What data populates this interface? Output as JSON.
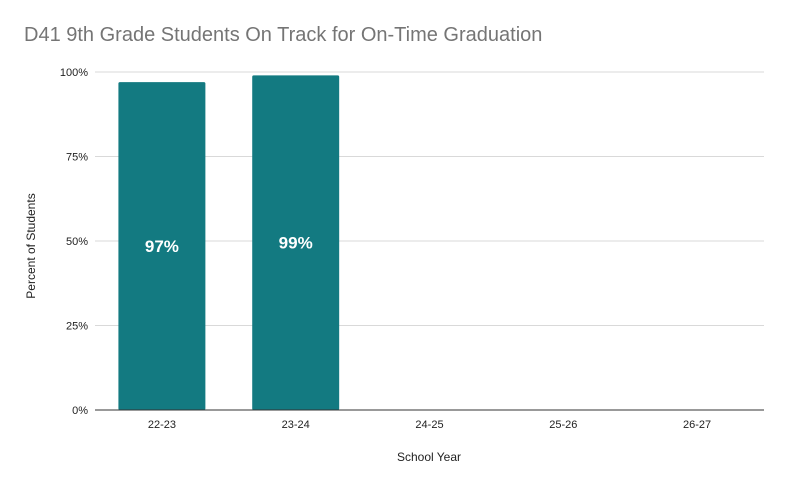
{
  "chart_data": {
    "type": "bar",
    "title": "D41 9th Grade Students On Track for On-Time Graduation",
    "xlabel": "School Year",
    "ylabel": "Percent of Students",
    "categories": [
      "22-23",
      "23-24",
      "24-25",
      "25-26",
      "26-27"
    ],
    "series": [
      {
        "values": [
          97,
          99,
          null,
          null,
          null
        ],
        "data_labels": [
          "97%",
          "99%",
          "",
          "",
          ""
        ]
      }
    ],
    "ylim": [
      0,
      100
    ],
    "yticks": [
      0,
      25,
      50,
      75,
      100
    ],
    "ytick_labels": [
      "0%",
      "25%",
      "50%",
      "75%",
      "100%"
    ],
    "grid": true,
    "legend": "none",
    "colors": {
      "bar": "#137a81",
      "title": "#757575",
      "gridline": "#d9d9d9",
      "axis": "#333333",
      "label": "#222222",
      "data_label": "#ffffff"
    }
  }
}
